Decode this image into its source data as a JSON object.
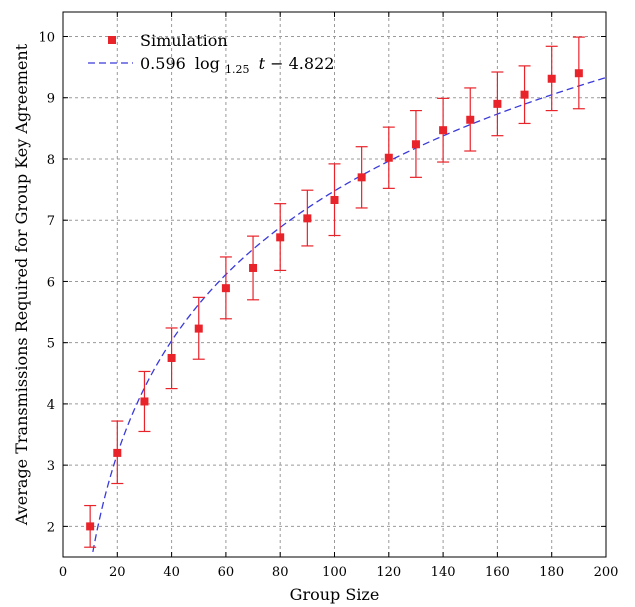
{
  "chart_data": {
    "type": "scatter",
    "xlabel": "Group Size",
    "ylabel": "Average Transmissions Required for Group Key Agreement",
    "xlim": [
      0,
      200
    ],
    "ylim": [
      1.5,
      10.4
    ],
    "xticks": [
      0,
      20,
      40,
      60,
      80,
      100,
      120,
      140,
      160,
      180,
      200
    ],
    "yticks": [
      2,
      3,
      4,
      5,
      6,
      7,
      8,
      9,
      10
    ],
    "grid": true,
    "legend_position": "top-left",
    "series": [
      {
        "name": "Simulation",
        "kind": "points-with-error-bars",
        "color": "#e8232a",
        "x": [
          10,
          20,
          30,
          40,
          50,
          60,
          70,
          80,
          90,
          100,
          110,
          120,
          130,
          140,
          150,
          160,
          170,
          180,
          190
        ],
        "y": [
          2.0,
          3.2,
          4.04,
          4.75,
          5.23,
          5.89,
          6.22,
          6.72,
          7.03,
          7.33,
          7.7,
          8.02,
          8.24,
          8.47,
          8.64,
          8.9,
          9.05,
          9.31,
          9.4
        ],
        "err_low": [
          1.66,
          2.7,
          3.55,
          4.25,
          4.73,
          5.39,
          5.7,
          6.18,
          6.58,
          6.75,
          7.2,
          7.52,
          7.7,
          7.95,
          8.13,
          8.38,
          8.58,
          8.79,
          8.82
        ],
        "err_high": [
          2.34,
          3.72,
          4.53,
          5.24,
          5.74,
          6.4,
          6.74,
          7.27,
          7.49,
          7.92,
          8.2,
          8.52,
          8.79,
          8.99,
          9.16,
          9.42,
          9.52,
          9.84,
          9.99
        ]
      },
      {
        "name": "0.596 log_1.25 t − 4.822",
        "kind": "fit-curve",
        "color": "#3a3adb",
        "a": 0.596,
        "base": 1.25,
        "b": -4.822
      }
    ],
    "legend": {
      "entries": [
        "Simulation",
        "0.596 log1.25 t − 4.822"
      ],
      "formula": {
        "coef": "0.596",
        "log": "log",
        "base": "1.25",
        "var": "t",
        "rest": " − 4.822"
      }
    }
  }
}
